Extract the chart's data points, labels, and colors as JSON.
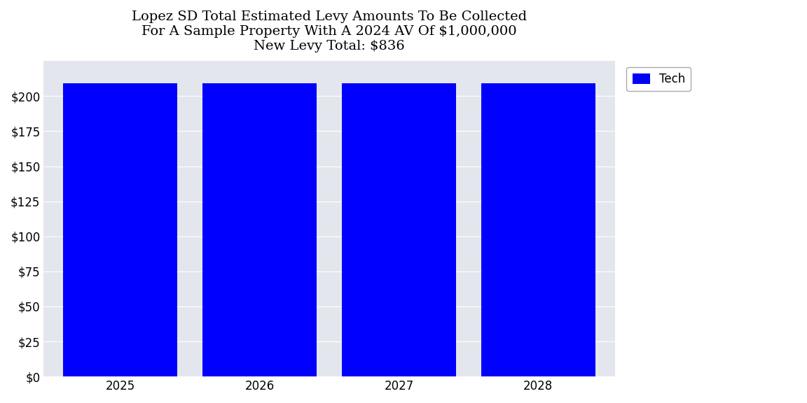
{
  "title_line1": "Lopez SD Total Estimated Levy Amounts To Be Collected",
  "title_line2": "For A Sample Property With A 2024 AV Of $1,000,000",
  "title_line3": "New Levy Total: $836",
  "years": [
    2025,
    2026,
    2027,
    2028
  ],
  "tech_values": [
    209,
    209,
    209,
    209
  ],
  "bar_color": "#0000FF",
  "legend_label": "Tech",
  "yticks": [
    0,
    25,
    50,
    75,
    100,
    125,
    150,
    175,
    200
  ],
  "ylim": [
    0,
    225
  ],
  "background_color": "#E4E6EE",
  "title_fontsize": 14,
  "axis_fontsize": 12,
  "legend_fontsize": 12
}
